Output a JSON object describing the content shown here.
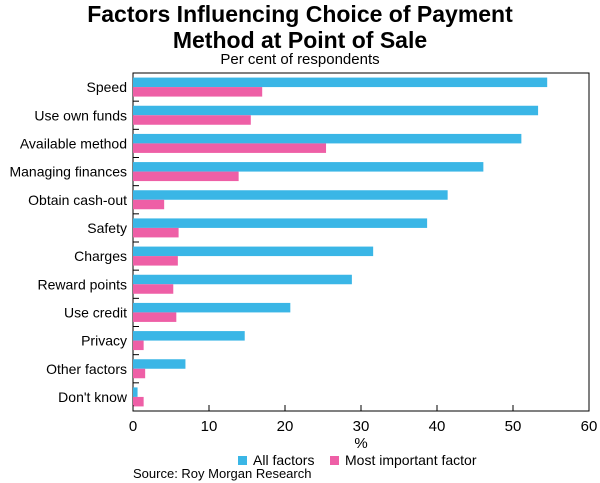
{
  "title_line1": "Factors Influencing Choice of Payment",
  "title_line2": "Method at Point of Sale",
  "subtitle": "Per cent of respondents",
  "source": "Source: Roy Morgan Research",
  "colors": {
    "all": "#3ab6e6",
    "most": "#ee5fa6",
    "axis": "#000000",
    "grid": "#c8c8c8"
  },
  "chart_data": {
    "type": "bar",
    "orientation": "horizontal",
    "categories": [
      "Speed",
      "Use own funds",
      "Available method",
      "Managing finances",
      "Obtain cash-out",
      "Safety",
      "Charges",
      "Reward points",
      "Use credit",
      "Privacy",
      "Other factors",
      "Don't know"
    ],
    "series": [
      {
        "name": "All factors",
        "values": [
          54.5,
          53.3,
          51.1,
          46.1,
          41.4,
          38.7,
          31.6,
          28.8,
          20.7,
          14.7,
          6.9,
          0.6
        ]
      },
      {
        "name": "Most important factor",
        "values": [
          17.0,
          15.5,
          25.4,
          13.9,
          4.1,
          6.0,
          5.9,
          5.3,
          5.7,
          1.4,
          1.6,
          1.4
        ]
      }
    ],
    "xlabel": "%",
    "xlim": [
      0,
      60
    ],
    "xticks": [
      0,
      10,
      20,
      30,
      40,
      50,
      60
    ],
    "grid": false,
    "legend": "bottom"
  }
}
